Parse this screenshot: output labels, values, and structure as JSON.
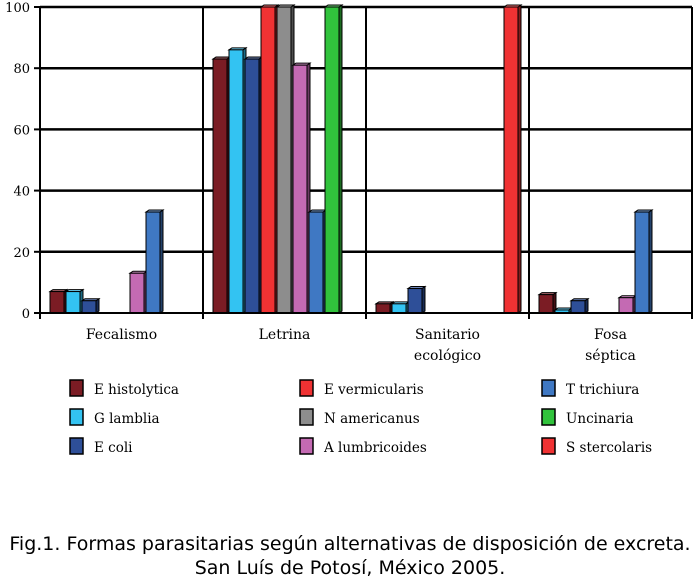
{
  "chart_data": {
    "type": "bar",
    "title": "",
    "xlabel": "",
    "ylabel": "",
    "ylim": [
      0,
      100
    ],
    "yticks": [
      0,
      20,
      40,
      60,
      80,
      100
    ],
    "grid": true,
    "legend_position": "bottom",
    "style": "3d-bars",
    "categories": [
      [
        "Fecalismo"
      ],
      [
        "Letrina"
      ],
      [
        "Sanitario",
        "ecológico"
      ],
      [
        "Fosa",
        "séptica"
      ]
    ],
    "series": [
      {
        "name": "E histolytica",
        "color": "#7b1c24",
        "values": [
          7,
          83,
          3,
          6
        ]
      },
      {
        "name": "G lamblia",
        "color": "#33c3f2",
        "values": [
          7,
          86,
          3,
          1
        ]
      },
      {
        "name": "E coli",
        "color": "#2e4f98",
        "values": [
          4,
          83,
          8,
          4
        ]
      },
      {
        "name": "E vermicularis",
        "color": "#f03233",
        "values": [
          0,
          100,
          0,
          0
        ]
      },
      {
        "name": "N americanus",
        "color": "#8d8d8d",
        "values": [
          0,
          100,
          0,
          0
        ]
      },
      {
        "name": "A lumbricoides",
        "color": "#c46ab3",
        "values": [
          13,
          81,
          0,
          5
        ]
      },
      {
        "name": "T trichiura",
        "color": "#3f78c3",
        "values": [
          33,
          33,
          0,
          33
        ]
      },
      {
        "name": "Uncinaria",
        "color": "#31c33c",
        "values": [
          0,
          100,
          0,
          0
        ]
      },
      {
        "name": "S stercolaris",
        "color": "#f03233",
        "values": [
          0,
          0,
          100,
          0
        ]
      }
    ],
    "legend_order": [
      0,
      3,
      6,
      1,
      4,
      7,
      2,
      5,
      8
    ]
  },
  "caption": "Fig.1. Formas parasitarias según alternativas de disposición de excreta. San Luís de Potosí, México 2005."
}
